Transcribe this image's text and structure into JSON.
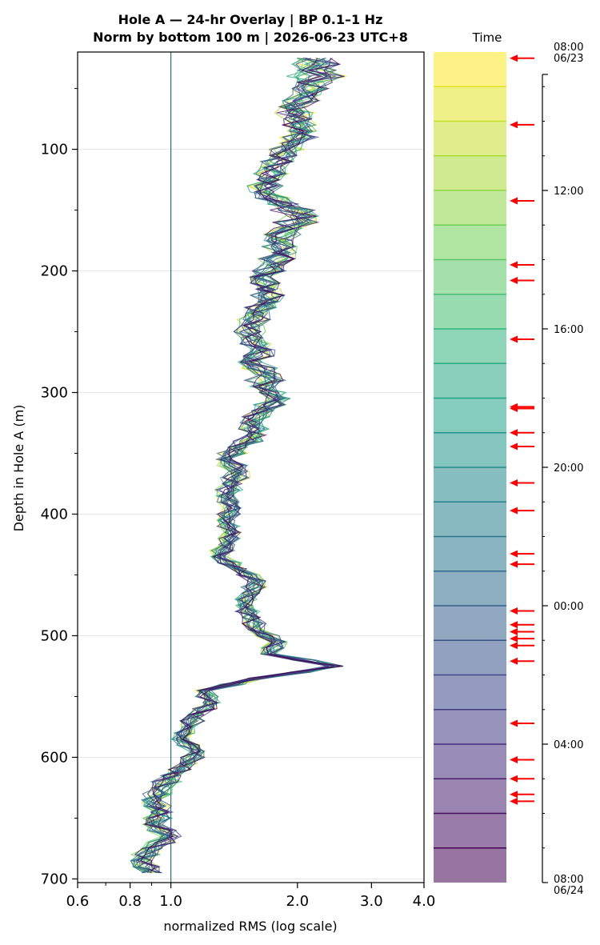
{
  "chart_data": {
    "type": "line",
    "title_line1": "Hole A — 24-hr Overlay  |  BP 0.1–1 Hz",
    "title_line2": "Norm by bottom 100 m  |  2026-06-23 UTC+8",
    "xlabel": "normalized RMS  (log scale)",
    "ylabel": "Depth in Hole A (m)",
    "x_scale": "log",
    "xlim": [
      0.6,
      4.0
    ],
    "ylim": [
      703,
      20
    ],
    "x_ticks": [
      {
        "value": 0.6,
        "label": "0.6"
      },
      {
        "value": 0.8,
        "label": "0.8"
      },
      {
        "value": 1.0,
        "label": "1.0"
      },
      {
        "value": 2.0,
        "label": "2.0"
      },
      {
        "value": 3.0,
        "label": "3.0"
      },
      {
        "value": 4.0,
        "label": "4.0"
      }
    ],
    "y_ticks": [
      {
        "value": 100,
        "label": "100"
      },
      {
        "value": 200,
        "label": "200"
      },
      {
        "value": 300,
        "label": "300"
      },
      {
        "value": 400,
        "label": "400"
      },
      {
        "value": 500,
        "label": "500"
      },
      {
        "value": 600,
        "label": "600"
      },
      {
        "value": 700,
        "label": "700"
      }
    ],
    "reference_line_x": 1.0,
    "grid": "horizontal",
    "colormap": "viridis",
    "profile_depths": [
      25,
      35,
      45,
      55,
      65,
      75,
      85,
      95,
      105,
      115,
      125,
      135,
      145,
      155,
      165,
      175,
      185,
      195,
      205,
      215,
      225,
      235,
      245,
      255,
      265,
      275,
      285,
      295,
      305,
      315,
      325,
      335,
      345,
      355,
      365,
      375,
      385,
      395,
      405,
      415,
      425,
      435,
      445,
      455,
      465,
      475,
      485,
      495,
      505,
      515,
      525,
      535,
      545,
      555,
      565,
      575,
      585,
      595,
      605,
      615,
      625,
      635,
      645,
      655,
      665,
      675,
      685,
      695
    ],
    "profile_median": [
      2.2,
      2.25,
      2.2,
      2.1,
      1.95,
      2.0,
      2.05,
      1.95,
      1.85,
      1.75,
      1.7,
      1.65,
      1.85,
      2.05,
      1.9,
      1.8,
      1.85,
      1.75,
      1.65,
      1.7,
      1.7,
      1.6,
      1.55,
      1.55,
      1.65,
      1.55,
      1.7,
      1.65,
      1.8,
      1.65,
      1.55,
      1.6,
      1.45,
      1.35,
      1.45,
      1.4,
      1.35,
      1.4,
      1.35,
      1.4,
      1.35,
      1.3,
      1.45,
      1.6,
      1.55,
      1.5,
      1.55,
      1.6,
      1.8,
      1.7,
      2.45,
      1.6,
      1.2,
      1.25,
      1.15,
      1.1,
      1.05,
      1.15,
      1.1,
      1.0,
      0.95,
      0.9,
      0.95,
      0.9,
      1.0,
      0.9,
      0.85,
      0.9
    ],
    "profile_spread": [
      0.1,
      0.12,
      0.1,
      0.08,
      0.08,
      0.08,
      0.08,
      0.08,
      0.08,
      0.07,
      0.07,
      0.07,
      0.09,
      0.09,
      0.08,
      0.08,
      0.08,
      0.07,
      0.07,
      0.07,
      0.07,
      0.07,
      0.07,
      0.07,
      0.07,
      0.07,
      0.08,
      0.07,
      0.07,
      0.06,
      0.06,
      0.06,
      0.06,
      0.06,
      0.06,
      0.06,
      0.05,
      0.05,
      0.05,
      0.05,
      0.05,
      0.05,
      0.05,
      0.05,
      0.05,
      0.05,
      0.05,
      0.05,
      0.05,
      0.05,
      0.05,
      0.05,
      0.05,
      0.05,
      0.05,
      0.05,
      0.05,
      0.05,
      0.05,
      0.06,
      0.06,
      0.06,
      0.06,
      0.06,
      0.06,
      0.06,
      0.06,
      0.06
    ],
    "series_count": 24,
    "colorbar": {
      "label": "Time",
      "tick_labels": [
        {
          "hour": 0,
          "label_line1": "08:00",
          "label_line2": "06/23"
        },
        {
          "hour": 4,
          "label_line1": "12:00",
          "label_line2": ""
        },
        {
          "hour": 8,
          "label_line1": "16:00",
          "label_line2": ""
        },
        {
          "hour": 12,
          "label_line1": "20:00",
          "label_line2": ""
        },
        {
          "hour": 16,
          "label_line1": "00:00",
          "label_line2": ""
        },
        {
          "hour": 20,
          "label_line1": "04:00",
          "label_line2": ""
        },
        {
          "hour": 24,
          "label_line1": "08:00",
          "label_line2": "06/24"
        }
      ],
      "event_hours": [
        0.18,
        2.1,
        4.3,
        6.15,
        6.6,
        8.3,
        10.25,
        10.3,
        11.0,
        11.4,
        12.45,
        13.25,
        14.5,
        14.8,
        16.15,
        16.55,
        16.75,
        16.95,
        17.15,
        17.6,
        19.4,
        20.45,
        21.0,
        21.45,
        21.65
      ],
      "arrow_color": "#ff0000"
    }
  }
}
